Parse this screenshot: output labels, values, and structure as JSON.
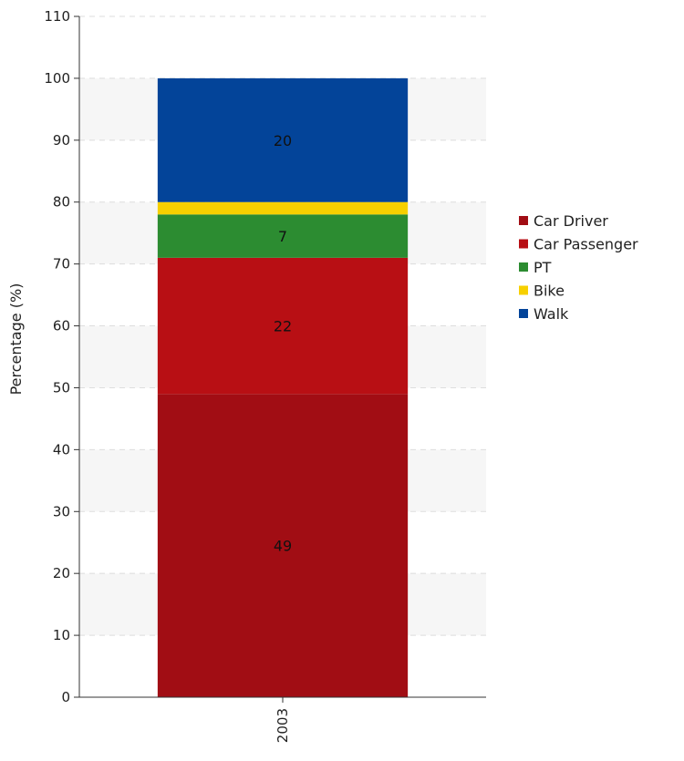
{
  "chart_data": {
    "type": "bar",
    "stacked": true,
    "categories": [
      "2003"
    ],
    "series": [
      {
        "name": "Car Driver",
        "values": [
          49
        ],
        "color": "#a10d14",
        "label": "49"
      },
      {
        "name": "Car Passenger",
        "values": [
          22
        ],
        "color": "#b80f14",
        "label": "22"
      },
      {
        "name": "PT",
        "values": [
          7
        ],
        "color": "#2c8c31",
        "label": "7"
      },
      {
        "name": "Bike",
        "values": [
          2
        ],
        "color": "#f7d000",
        "label": ""
      },
      {
        "name": "Walk",
        "values": [
          20
        ],
        "color": "#034499",
        "label": "20"
      }
    ],
    "ylabel": "Percentage (%)",
    "ylim": [
      0,
      110
    ],
    "yticks": [
      0,
      10,
      20,
      30,
      40,
      50,
      60,
      70,
      80,
      90,
      100,
      110
    ],
    "grid": true,
    "legend_position": "right"
  }
}
